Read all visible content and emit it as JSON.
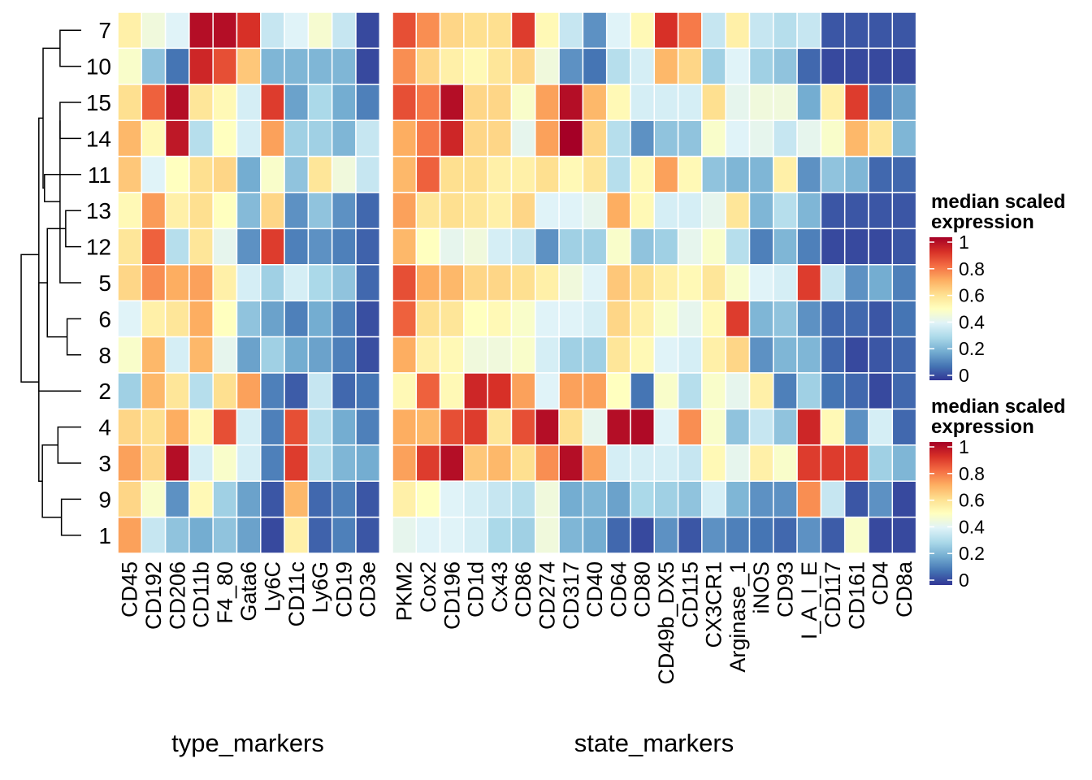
{
  "chart_data": {
    "type": "heatmap",
    "rows": [
      "7",
      "10",
      "15",
      "14",
      "11",
      "13",
      "12",
      "5",
      "6",
      "8",
      "2",
      "4",
      "3",
      "9",
      "1"
    ],
    "panels": [
      {
        "title": "type_markers",
        "columns": [
          "CD45",
          "CD192",
          "CD206",
          "CD11b",
          "F4_80",
          "Gata6",
          "Ly6C",
          "CD11c",
          "Ly6G",
          "CD19",
          "CD3e"
        ],
        "values": [
          [
            0.55,
            0.45,
            0.4,
            0.97,
            0.97,
            0.9,
            0.35,
            0.4,
            0.47,
            0.35,
            0.03
          ],
          [
            0.48,
            0.25,
            0.1,
            0.92,
            0.85,
            0.65,
            0.22,
            0.22,
            0.22,
            0.22,
            0.03
          ],
          [
            0.6,
            0.82,
            0.97,
            0.58,
            0.52,
            0.38,
            0.88,
            0.18,
            0.3,
            0.2,
            0.12
          ],
          [
            0.68,
            0.52,
            0.95,
            0.32,
            0.5,
            0.38,
            0.72,
            0.28,
            0.28,
            0.22,
            0.35
          ],
          [
            0.65,
            0.4,
            0.5,
            0.6,
            0.62,
            0.2,
            0.48,
            0.25,
            0.58,
            0.45,
            0.35
          ],
          [
            0.52,
            0.73,
            0.55,
            0.6,
            0.5,
            0.23,
            0.62,
            0.15,
            0.25,
            0.15,
            0.08
          ],
          [
            0.58,
            0.82,
            0.32,
            0.58,
            0.42,
            0.15,
            0.88,
            0.12,
            0.15,
            0.12,
            0.07
          ],
          [
            0.62,
            0.75,
            0.7,
            0.72,
            0.55,
            0.38,
            0.28,
            0.38,
            0.3,
            0.25,
            0.08
          ],
          [
            0.4,
            0.55,
            0.58,
            0.7,
            0.5,
            0.25,
            0.18,
            0.12,
            0.2,
            0.12,
            0.04
          ],
          [
            0.48,
            0.68,
            0.38,
            0.68,
            0.42,
            0.18,
            0.28,
            0.2,
            0.18,
            0.12,
            0.04
          ],
          [
            0.28,
            0.68,
            0.58,
            0.32,
            0.6,
            0.72,
            0.12,
            0.06,
            0.35,
            0.08,
            0.1
          ],
          [
            0.62,
            0.6,
            0.7,
            0.52,
            0.85,
            0.38,
            0.12,
            0.85,
            0.32,
            0.2,
            0.12
          ],
          [
            0.72,
            0.62,
            0.97,
            0.38,
            0.48,
            0.38,
            0.12,
            0.88,
            0.32,
            0.22,
            0.2
          ],
          [
            0.62,
            0.48,
            0.15,
            0.52,
            0.28,
            0.18,
            0.05,
            0.68,
            0.08,
            0.12,
            0.05
          ],
          [
            0.72,
            0.35,
            0.25,
            0.2,
            0.25,
            0.18,
            0.03,
            0.55,
            0.07,
            0.12,
            0.05
          ]
        ]
      },
      {
        "title": "state_markers",
        "columns": [
          "PKM2",
          "Cox2",
          "CD196",
          "CD1d",
          "Cx43",
          "CD86",
          "CD274",
          "CD317",
          "CD40",
          "CD64",
          "CD80",
          "CD49b_DX5",
          "CD115",
          "CX3CR1",
          "Arginase_1",
          "iNOS",
          "CD93",
          "I_A_I_E",
          "CD117",
          "CD161",
          "CD4",
          "CD8a"
        ],
        "values": [
          [
            0.85,
            0.75,
            0.62,
            0.6,
            0.6,
            0.88,
            0.52,
            0.35,
            0.15,
            0.4,
            0.52,
            0.9,
            0.78,
            0.35,
            0.55,
            0.35,
            0.32,
            0.35,
            0.05,
            0.05,
            0.05,
            0.05
          ],
          [
            0.75,
            0.62,
            0.55,
            0.52,
            0.58,
            0.62,
            0.45,
            0.15,
            0.1,
            0.32,
            0.38,
            0.68,
            0.62,
            0.28,
            0.4,
            0.28,
            0.25,
            0.08,
            0.03,
            0.03,
            0.03,
            0.03
          ],
          [
            0.85,
            0.78,
            0.97,
            0.62,
            0.62,
            0.48,
            0.72,
            0.97,
            0.68,
            0.52,
            0.38,
            0.38,
            0.38,
            0.6,
            0.42,
            0.45,
            0.45,
            0.2,
            0.55,
            0.88,
            0.12,
            0.18
          ],
          [
            0.7,
            0.78,
            0.92,
            0.62,
            0.62,
            0.42,
            0.72,
            1.0,
            0.62,
            0.32,
            0.15,
            0.25,
            0.25,
            0.48,
            0.4,
            0.42,
            0.35,
            0.42,
            0.48,
            0.68,
            0.58,
            0.22
          ],
          [
            0.68,
            0.82,
            0.6,
            0.6,
            0.55,
            0.55,
            0.6,
            0.52,
            0.58,
            0.32,
            0.52,
            0.72,
            0.52,
            0.25,
            0.22,
            0.22,
            0.55,
            0.15,
            0.25,
            0.22,
            0.08,
            0.08
          ],
          [
            0.72,
            0.58,
            0.6,
            0.58,
            0.55,
            0.62,
            0.4,
            0.4,
            0.42,
            0.7,
            0.52,
            0.38,
            0.38,
            0.42,
            0.58,
            0.22,
            0.32,
            0.22,
            0.05,
            0.05,
            0.05,
            0.05
          ],
          [
            0.68,
            0.5,
            0.42,
            0.45,
            0.38,
            0.35,
            0.15,
            0.28,
            0.28,
            0.48,
            0.25,
            0.28,
            0.42,
            0.48,
            0.32,
            0.12,
            0.22,
            0.12,
            0.03,
            0.03,
            0.03,
            0.05
          ],
          [
            0.85,
            0.7,
            0.68,
            0.62,
            0.62,
            0.6,
            0.55,
            0.45,
            0.4,
            0.65,
            0.6,
            0.55,
            0.52,
            0.58,
            0.48,
            0.4,
            0.38,
            0.88,
            0.35,
            0.15,
            0.2,
            0.12
          ],
          [
            0.82,
            0.6,
            0.58,
            0.5,
            0.52,
            0.48,
            0.4,
            0.4,
            0.38,
            0.62,
            0.55,
            0.48,
            0.42,
            0.52,
            0.88,
            0.22,
            0.25,
            0.15,
            0.08,
            0.08,
            0.05,
            0.1
          ],
          [
            0.7,
            0.55,
            0.52,
            0.45,
            0.45,
            0.48,
            0.38,
            0.28,
            0.28,
            0.58,
            0.52,
            0.4,
            0.38,
            0.55,
            0.62,
            0.15,
            0.22,
            0.22,
            0.08,
            0.03,
            0.05,
            0.08
          ],
          [
            0.52,
            0.82,
            0.52,
            0.92,
            0.9,
            0.72,
            0.4,
            0.72,
            0.72,
            0.5,
            0.1,
            0.48,
            0.32,
            0.48,
            0.42,
            0.55,
            0.12,
            0.28,
            0.1,
            0.08,
            0.03,
            0.08
          ],
          [
            0.7,
            0.68,
            0.85,
            0.88,
            0.58,
            0.85,
            0.97,
            0.6,
            0.42,
            0.97,
            0.98,
            0.4,
            0.75,
            0.48,
            0.25,
            0.35,
            0.25,
            0.92,
            0.52,
            0.15,
            0.38,
            0.08
          ],
          [
            0.72,
            0.88,
            0.97,
            0.65,
            0.68,
            0.6,
            0.75,
            0.97,
            0.72,
            0.38,
            0.38,
            0.38,
            0.35,
            0.52,
            0.42,
            0.55,
            0.48,
            0.88,
            0.88,
            0.88,
            0.28,
            0.22
          ],
          [
            0.55,
            0.5,
            0.4,
            0.38,
            0.35,
            0.32,
            0.45,
            0.2,
            0.22,
            0.18,
            0.3,
            0.28,
            0.25,
            0.38,
            0.22,
            0.15,
            0.15,
            0.75,
            0.35,
            0.05,
            0.15,
            0.03
          ],
          [
            0.42,
            0.4,
            0.4,
            0.38,
            0.3,
            0.28,
            0.45,
            0.22,
            0.2,
            0.08,
            0.03,
            0.15,
            0.05,
            0.15,
            0.12,
            0.1,
            0.08,
            0.15,
            0.06,
            0.48,
            0.03,
            0.03
          ]
        ]
      }
    ],
    "legends": [
      {
        "title_line1": "median scaled",
        "title_line2": "expression",
        "ticks": [
          "1",
          "0.8",
          "0.6",
          "0.4",
          "0.2",
          "0"
        ]
      },
      {
        "title_line1": "median scaled",
        "title_line2": "expression",
        "ticks": [
          "1",
          "0.8",
          "0.6",
          "0.4",
          "0.2",
          "0"
        ]
      }
    ],
    "color_scale": {
      "domain": [
        0,
        1
      ],
      "colors": [
        "#313695",
        "#4575b4",
        "#74add1",
        "#abd9e9",
        "#e0f3f8",
        "#ffffbf",
        "#fee090",
        "#fdae61",
        "#f46d43",
        "#d73027",
        "#a50026"
      ]
    },
    "dendrogram": {
      "merges": [
        [
          0,
          1,
          0.3
        ],
        [
          2,
          3,
          0.3
        ],
        [
          8,
          9,
          0.2
        ],
        [
          5,
          6,
          0.22
        ],
        [
          7,
          16,
          0.3
        ],
        [
          13,
          14,
          0.28
        ],
        [
          11,
          12,
          0.33
        ],
        [
          18,
          17,
          0.48
        ],
        [
          4,
          19,
          0.52
        ],
        [
          15,
          23,
          0.54
        ],
        [
          21,
          20,
          0.55
        ],
        [
          24,
          10,
          0.6
        ],
        [
          25,
          22,
          0.6
        ],
        [
          26,
          27,
          0.85
        ]
      ]
    }
  }
}
